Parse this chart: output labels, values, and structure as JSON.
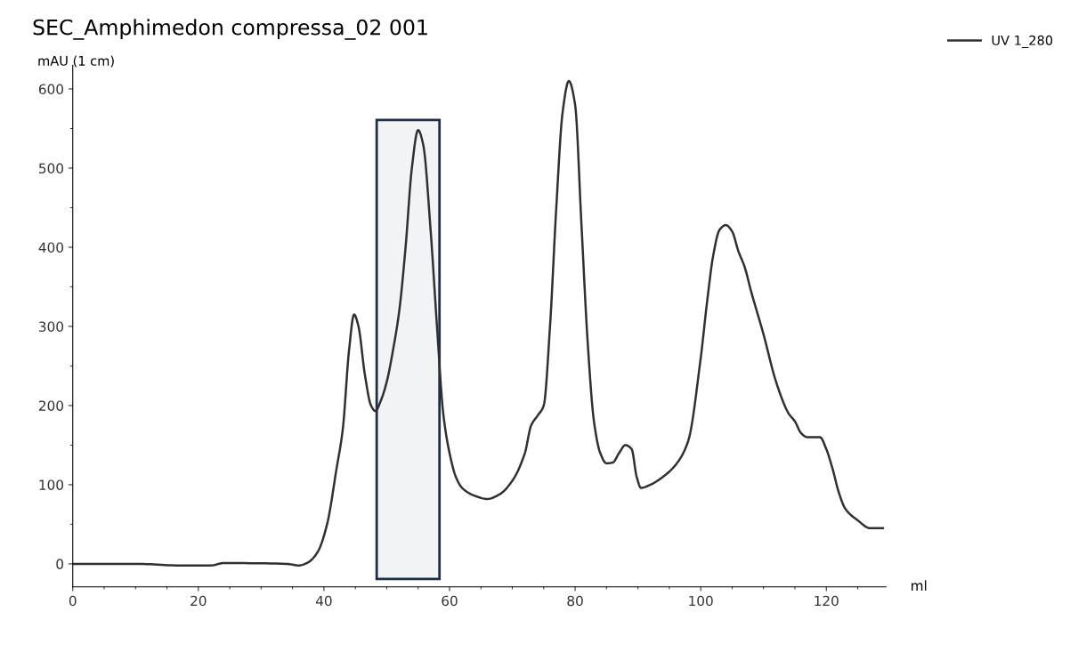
{
  "chart_data": {
    "type": "line",
    "title": "SEC_Amphimedon compressa_02 001",
    "xlabel": "ml",
    "ylabel": "mAU (1 cm)",
    "xlim": [
      0,
      129.5
    ],
    "ylim": [
      -29,
      630
    ],
    "xticks": [
      0,
      20,
      40,
      60,
      80,
      100,
      120
    ],
    "yticks": [
      0,
      100,
      200,
      300,
      400,
      500,
      600
    ],
    "grid": false,
    "legend": "top right",
    "marker": "none",
    "line_style": "solid",
    "bands": [
      {
        "axis": "x",
        "from": 48.4,
        "to": 58.4,
        "color": "#1f2d4d"
      }
    ],
    "series": [
      {
        "name": "UV 1_280",
        "color": "#303030",
        "x": [
          0,
          10,
          17,
          22,
          24,
          34,
          36,
          37.5,
          39,
          40.5,
          42,
          43,
          44,
          44.8,
          45.5,
          46.5,
          47.5,
          48.2,
          49,
          50,
          51,
          52,
          53,
          54,
          55,
          55.8,
          57,
          58,
          59,
          60,
          61,
          62,
          64,
          66,
          68,
          70,
          72,
          73,
          74,
          75,
          76,
          77,
          78,
          79,
          80,
          81,
          82,
          83,
          84,
          85,
          86,
          87,
          88,
          89,
          89.8,
          90.5,
          92,
          94,
          96,
          98,
          100,
          101,
          102,
          103,
          104,
          105,
          106,
          107,
          108,
          110,
          112,
          114,
          115,
          116,
          117,
          119,
          120,
          121,
          122,
          123,
          125,
          127,
          129
        ],
        "values": [
          0,
          0,
          -2,
          -2,
          1,
          0,
          -2,
          2,
          15,
          50,
          120,
          170,
          270,
          315,
          300,
          240,
          200,
          193,
          205,
          230,
          270,
          320,
          400,
          500,
          548,
          530,
          420,
          300,
          190,
          140,
          110,
          96,
          86,
          82,
          88,
          105,
          140,
          175,
          187,
          200,
          300,
          450,
          570,
          610,
          580,
          430,
          280,
          180,
          140,
          127,
          128,
          140,
          150,
          145,
          110,
          96,
          100,
          110,
          125,
          155,
          260,
          330,
          390,
          422,
          428,
          420,
          395,
          375,
          345,
          290,
          230,
          190,
          180,
          165,
          160,
          160,
          145,
          120,
          90,
          70,
          55,
          45,
          45
        ]
      }
    ]
  }
}
